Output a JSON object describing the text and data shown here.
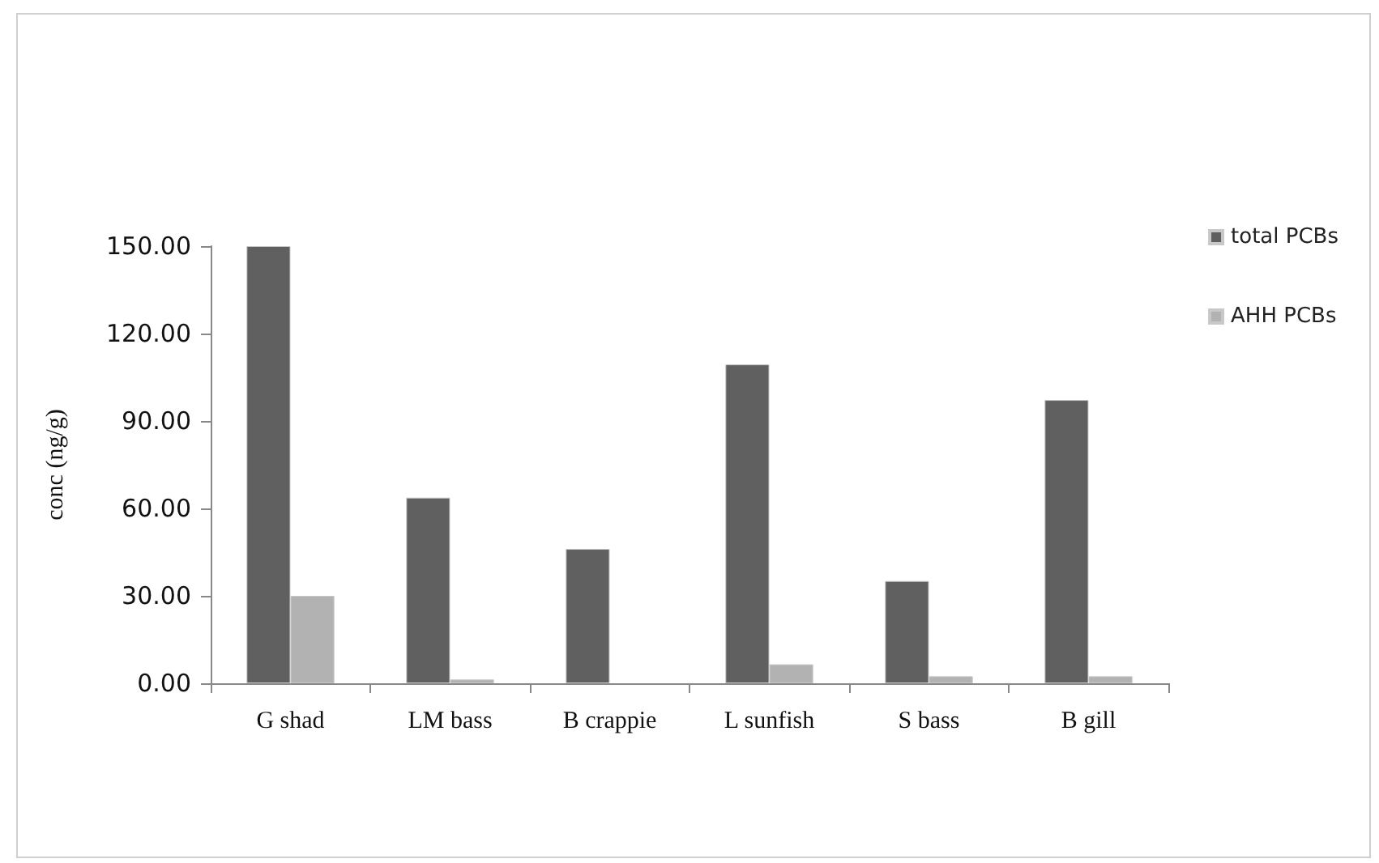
{
  "chart_data": {
    "type": "bar",
    "ylabel": "conc (ng/g)",
    "categories": [
      "G shad",
      "LM bass",
      "B crappie",
      "L sunfish",
      "S bass",
      "B gill"
    ],
    "series": [
      {
        "name": "total PCBs",
        "color": "#606060",
        "values": [
          150.0,
          63.7,
          46.1,
          109.4,
          35.1,
          97.2
        ]
      },
      {
        "name": "AHH PCBs",
        "color": "#b2b2b2",
        "values": [
          30.0,
          1.3,
          null,
          6.5,
          2.4,
          2.4
        ]
      }
    ],
    "ylim": [
      0,
      150
    ],
    "yticks": [
      {
        "value": 0,
        "label": "0.00"
      },
      {
        "value": 30,
        "label": "30.00"
      },
      {
        "value": 60,
        "label": "60.00"
      },
      {
        "value": 90,
        "label": "90.00"
      },
      {
        "value": 120,
        "label": "120.00"
      },
      {
        "value": 150,
        "label": "150.00"
      }
    ],
    "grid": false,
    "legend": "top right"
  }
}
